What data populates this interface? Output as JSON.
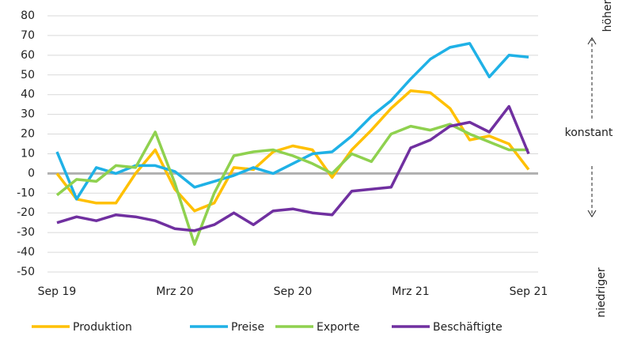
{
  "chart_data": {
    "type": "line",
    "categories": [
      "Sep 19",
      null,
      null,
      null,
      null,
      null,
      "Mrz 20",
      null,
      null,
      null,
      null,
      null,
      "Sep 20",
      null,
      null,
      null,
      null,
      null,
      "Mrz 21",
      null,
      null,
      null,
      null,
      null,
      "Sep 21"
    ],
    "series": [
      {
        "name": "Produktion",
        "color": "#ffc000",
        "values": [
          0,
          -13,
          -15,
          -15,
          0,
          12,
          -8,
          -19,
          -15,
          3,
          2,
          11,
          14,
          12,
          -2,
          12,
          22,
          33,
          42,
          41,
          33,
          17,
          19,
          15,
          2
        ]
      },
      {
        "name": "Preise",
        "color": "#1fb1e6",
        "values": [
          11,
          -13,
          3,
          0,
          4,
          4,
          1,
          -7,
          -4,
          -1,
          3,
          0,
          5,
          10,
          11,
          19,
          29,
          37,
          48,
          58,
          64,
          66,
          49,
          60,
          59
        ]
      },
      {
        "name": "Exporte",
        "color": "#8fd14f",
        "values": [
          -11,
          -3,
          -4,
          4,
          3,
          21,
          -5,
          -36,
          -10,
          9,
          11,
          12,
          9,
          5,
          0,
          10,
          6,
          20,
          24,
          22,
          25,
          20,
          16,
          12,
          12
        ]
      },
      {
        "name": "Beschäftigte",
        "color": "#7030a0",
        "values": [
          -25,
          -22,
          -24,
          -21,
          -22,
          -24,
          -28,
          -29,
          -26,
          -20,
          -26,
          -19,
          -18,
          -20,
          -21,
          -9,
          -8,
          -7,
          13,
          17,
          24,
          26,
          21,
          34,
          10
        ]
      }
    ],
    "ylim": [
      -50,
      80
    ],
    "yticks": [
      -50,
      -40,
      -30,
      -20,
      -10,
      0,
      10,
      20,
      30,
      40,
      50,
      60,
      70,
      80
    ],
    "grid": true,
    "legend": "bottom",
    "annotations": {
      "top": "höher",
      "middle": "konstant",
      "bottom": "niedriger"
    }
  }
}
